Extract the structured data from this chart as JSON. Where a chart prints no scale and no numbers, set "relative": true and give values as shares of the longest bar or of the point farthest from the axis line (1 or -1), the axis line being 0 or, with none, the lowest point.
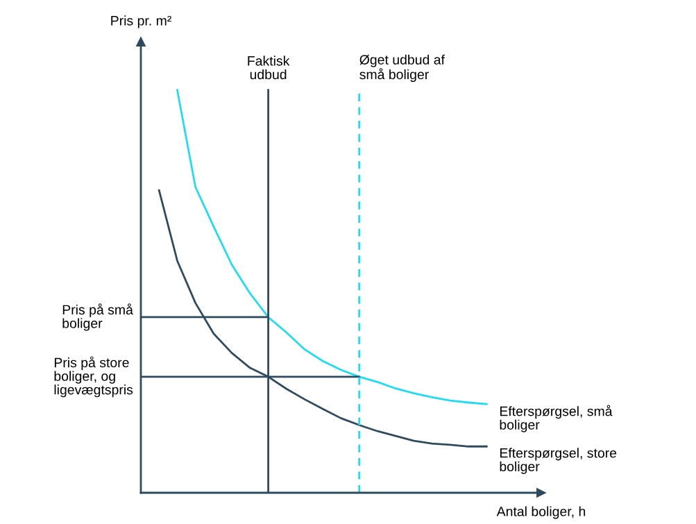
{
  "chart_data": {
    "type": "line",
    "relative": true,
    "xlabel": "Antal boliger, h",
    "ylabel": "Pris pr. m²",
    "legend": false,
    "marker": "none",
    "grid": false,
    "categories": [
      null,
      null,
      null,
      null,
      null,
      null,
      null,
      null,
      null,
      null,
      null,
      null,
      null,
      null,
      null,
      null,
      null,
      null,
      null,
      null,
      null
    ],
    "series": [
      {
        "name": "Efterspørgsel, små boliger",
        "color": "#1fdcf5",
        "values": [
          null,
          1.0,
          0.759,
          0.661,
          0.566,
          0.495,
          0.436,
          0.398,
          0.356,
          0.327,
          0.305,
          0.288,
          0.275,
          0.259,
          0.247,
          0.237,
          0.229,
          0.224,
          0.22,
          null,
          null
        ]
      },
      {
        "name": "Efterspørgsel, store boliger",
        "color": "#2e4a5f",
        "values": [
          0.751,
          0.576,
          0.471,
          0.395,
          0.347,
          0.31,
          0.288,
          0.258,
          0.232,
          0.208,
          0.185,
          0.168,
          0.153,
          0.141,
          0.129,
          0.122,
          0.119,
          0.115,
          0.115,
          null,
          null
        ]
      }
    ],
    "annotations": [
      "Faktisk\nudbud",
      "Øget udbud af\nsmå boliger"
    ],
    "ref_lines": [
      {
        "axis": "y",
        "value": 0.436,
        "label": "Pris på små\nboliger",
        "color": "#2e4a5f",
        "line_style": "solid"
      },
      {
        "axis": "y",
        "value": 0.288,
        "label": "Pris på store\nboliger, og\nligevægtspris",
        "color": "#2e4a5f",
        "line_style": "solid"
      }
    ]
  }
}
